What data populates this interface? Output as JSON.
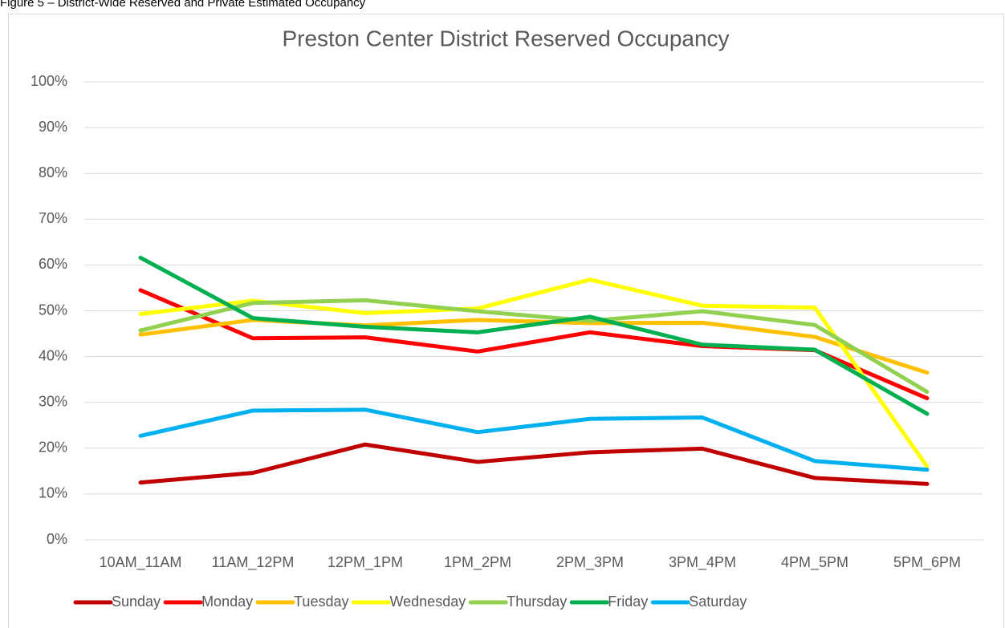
{
  "figure_caption": "Figure 5 – District-Wide Reserved and Private Estimated Occupancy",
  "chart_data": {
    "type": "line",
    "title": "Preston Center District Reserved Occupancy",
    "categories": [
      "10AM_11AM",
      "11AM_12PM",
      "12PM_1PM",
      "1PM_2PM",
      "2PM_3PM",
      "3PM_4PM",
      "4PM_5PM",
      "5PM_6PM"
    ],
    "series": [
      {
        "name": "Sunday",
        "color": "#c00000",
        "values": [
          12.5,
          14.6,
          20.8,
          17.0,
          19.1,
          19.9,
          13.5,
          12.2
        ]
      },
      {
        "name": "Monday",
        "color": "#ff0000",
        "values": [
          54.5,
          44.0,
          44.2,
          41.1,
          45.3,
          42.3,
          41.4,
          30.9
        ]
      },
      {
        "name": "Tuesday",
        "color": "#ffc000",
        "values": [
          44.8,
          48.0,
          46.8,
          48.0,
          47.3,
          47.4,
          44.3,
          36.5
        ]
      },
      {
        "name": "Wednesday",
        "color": "#ffff00",
        "values": [
          49.3,
          52.2,
          49.5,
          50.5,
          56.8,
          51.1,
          50.7,
          16.0
        ]
      },
      {
        "name": "Thursday",
        "color": "#92d050",
        "values": [
          45.7,
          51.7,
          52.3,
          49.9,
          47.8,
          49.9,
          46.9,
          32.3
        ]
      },
      {
        "name": "Friday",
        "color": "#00b050",
        "values": [
          61.6,
          48.4,
          46.5,
          45.3,
          48.7,
          42.6,
          41.5,
          27.5
        ]
      },
      {
        "name": "Saturday",
        "color": "#00b0f0",
        "values": [
          22.7,
          28.2,
          28.4,
          23.5,
          26.4,
          26.7,
          17.2,
          15.3
        ]
      }
    ],
    "ylim": [
      0,
      100
    ],
    "yticks": [
      {
        "value": 0,
        "label": "0%"
      },
      {
        "value": 10,
        "label": "10%"
      },
      {
        "value": 20,
        "label": "20%"
      },
      {
        "value": 30,
        "label": "30%"
      },
      {
        "value": 40,
        "label": "40%"
      },
      {
        "value": 50,
        "label": "50%"
      },
      {
        "value": 60,
        "label": "60%"
      },
      {
        "value": 70,
        "label": "70%"
      },
      {
        "value": 80,
        "label": "80%"
      },
      {
        "value": 90,
        "label": "90%"
      },
      {
        "value": 100,
        "label": "100%"
      }
    ],
    "grid": true,
    "legend": "bottom"
  }
}
